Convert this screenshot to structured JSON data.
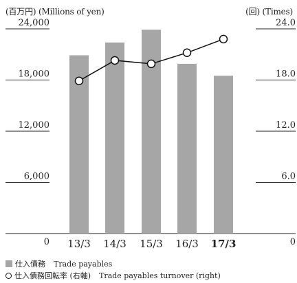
{
  "chart_data": {
    "type": "bar+line",
    "unit_left": "(百万円) (Millions of yen)",
    "unit_right": "(回) (Times)",
    "categories": [
      "13/3",
      "14/3",
      "15/3",
      "16/3",
      "17/3"
    ],
    "highlight_category": "17/3",
    "series": [
      {
        "name_jp": "仕入債務",
        "name": "Trade payables",
        "type": "bar",
        "axis": "left",
        "values": [
          20900,
          22400,
          23900,
          19900,
          18500
        ]
      },
      {
        "name_jp": "仕入債務回転率 (右軸)",
        "name": "Trade payables turnover (right)",
        "type": "line",
        "axis": "right",
        "values": [
          17.9,
          20.3,
          19.9,
          21.2,
          22.8
        ]
      }
    ],
    "y_left": {
      "min": 0,
      "max": 24000,
      "ticks": [
        "0",
        "6,000",
        "12,000",
        "18,000",
        "24,000"
      ],
      "tick_values": [
        0,
        6000,
        12000,
        18000,
        24000
      ]
    },
    "y_right": {
      "min": 0,
      "max": 24,
      "ticks": [
        "0",
        "6.0",
        "12.0",
        "18.0",
        "24.0"
      ],
      "tick_values": [
        0,
        6,
        12,
        18,
        24
      ]
    },
    "colors": {
      "bar": "#a6a6a6",
      "line": "#111111",
      "marker_fill": "#ffffff",
      "axis": "#222222"
    }
  }
}
